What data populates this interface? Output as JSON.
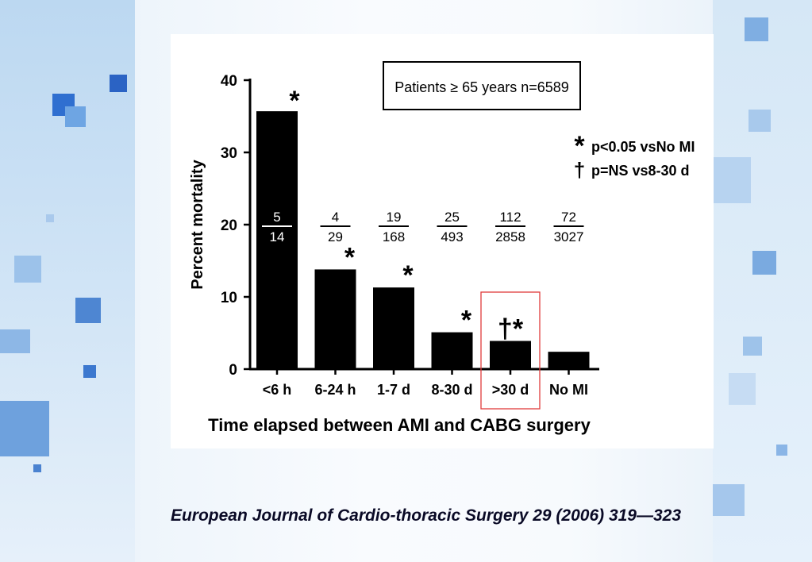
{
  "chart_data": {
    "type": "bar",
    "categories": [
      "<6 h",
      "6-24 h",
      "1-7 d",
      "8-30 d",
      ">30 d",
      "No MI"
    ],
    "values": [
      35.7,
      13.8,
      11.3,
      5.1,
      3.9,
      2.4
    ],
    "fractions": [
      {
        "num": "5",
        "den": "14"
      },
      {
        "num": "4",
        "den": "29"
      },
      {
        "num": "19",
        "den": "168"
      },
      {
        "num": "25",
        "den": "493"
      },
      {
        "num": "112",
        "den": "2858"
      },
      {
        "num": "72",
        "den": "3027"
      }
    ],
    "markers": [
      "*",
      "*",
      "*",
      "*",
      "†*",
      ""
    ],
    "highlighted_category": ">30 d",
    "highlight_color": "#e03b3b",
    "bar_color": "#000000",
    "xlabel": "Time elapsed between AMI and CABG surgery",
    "ylabel": "Percent mortality",
    "ylim": [
      0,
      40
    ],
    "yticks": [
      "0",
      "10",
      "20",
      "30",
      "40"
    ],
    "grid": false,
    "annotation_box": "Patients ≥ 65 years n=6589",
    "legend": [
      {
        "symbol": "*",
        "text": "p<0.05 vsNo MI"
      },
      {
        "symbol": "†",
        "text": "p=NS vs8-30 d"
      }
    ],
    "legend_position": "top-right"
  },
  "citation": "European Journal of Cardio-thoracic Surgery 29 (2006) 319—323"
}
